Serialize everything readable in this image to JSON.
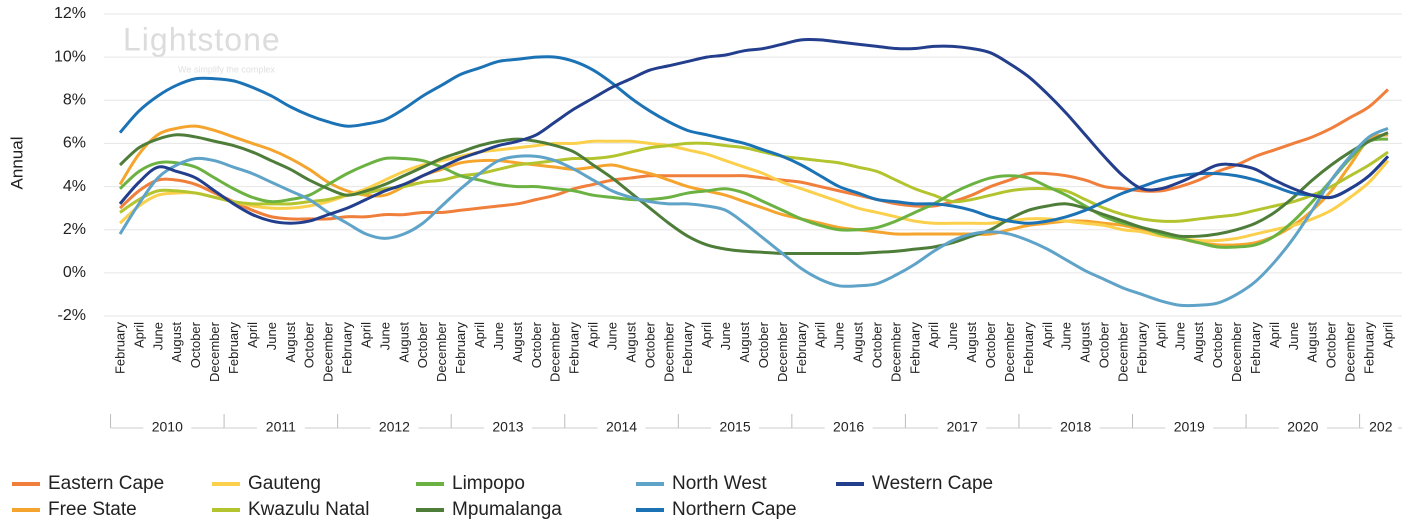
{
  "chart_data": {
    "type": "line",
    "y_label": "Annual",
    "watermark": "Lightstone",
    "watermark_tagline": "We simplify the complex",
    "smooth": true,
    "grid": true,
    "legend": "bottom",
    "categories": [
      "February",
      "April",
      "June",
      "August",
      "October",
      "December",
      "February",
      "April",
      "June",
      "August",
      "October",
      "December",
      "February",
      "April",
      "June",
      "August",
      "October",
      "December",
      "February",
      "April",
      "June",
      "August",
      "October",
      "December",
      "February",
      "April",
      "June",
      "August",
      "October",
      "December",
      "February",
      "April",
      "June",
      "August",
      "October",
      "December",
      "February",
      "April",
      "June",
      "August",
      "October",
      "December",
      "February",
      "April",
      "June",
      "August",
      "October",
      "December",
      "February",
      "April",
      "June",
      "August",
      "October",
      "December",
      "February",
      "April",
      "June",
      "August",
      "October",
      "December",
      "February",
      "April",
      "June",
      "August",
      "October",
      "December",
      "February",
      "April"
    ],
    "year_labels": [
      "2010",
      "2011",
      "2012",
      "2013",
      "2014",
      "2015",
      "2016",
      "2017",
      "2018",
      "2019",
      "2020",
      "202"
    ],
    "ylim": [
      -2,
      12
    ],
    "yticks": [
      {
        "value": 12,
        "label": "12%"
      },
      {
        "value": 10,
        "label": "10%"
      },
      {
        "value": 8,
        "label": "8%"
      },
      {
        "value": 6,
        "label": "6%"
      },
      {
        "value": 4,
        "label": "4%"
      },
      {
        "value": 2,
        "label": "2%"
      },
      {
        "value": 0,
        "label": "0%"
      },
      {
        "value": -2,
        "label": "-2%"
      }
    ],
    "series": [
      {
        "name": "Eastern Cape",
        "color": "#f07f3c",
        "values": [
          3.0,
          3.8,
          4.3,
          4.3,
          4.1,
          3.7,
          3.3,
          2.9,
          2.6,
          2.5,
          2.5,
          2.5,
          2.6,
          2.6,
          2.7,
          2.7,
          2.8,
          2.8,
          2.9,
          3.0,
          3.1,
          3.2,
          3.4,
          3.6,
          3.9,
          4.1,
          4.3,
          4.4,
          4.5,
          4.5,
          4.5,
          4.5,
          4.5,
          4.5,
          4.4,
          4.3,
          4.2,
          4.0,
          3.8,
          3.6,
          3.4,
          3.2,
          3.1,
          3.1,
          3.3,
          3.6,
          4.0,
          4.3,
          4.6,
          4.6,
          4.5,
          4.3,
          4.0,
          3.9,
          3.8,
          3.8,
          4.0,
          4.3,
          4.7,
          5.0,
          5.4,
          5.7,
          6.0,
          6.3,
          6.7,
          7.2,
          7.7,
          8.5
        ]
      },
      {
        "name": "Free State",
        "color": "#f5a52e",
        "values": [
          4.1,
          5.5,
          6.4,
          6.7,
          6.8,
          6.6,
          6.3,
          6.0,
          5.7,
          5.3,
          4.8,
          4.2,
          3.8,
          3.6,
          3.6,
          4.0,
          4.5,
          4.8,
          5.1,
          5.2,
          5.2,
          5.1,
          5.0,
          4.9,
          4.8,
          4.9,
          5.0,
          4.8,
          4.6,
          4.3,
          4.0,
          3.8,
          3.6,
          3.3,
          3.0,
          2.7,
          2.5,
          2.3,
          2.1,
          2.0,
          1.9,
          1.8,
          1.8,
          1.8,
          1.8,
          1.8,
          1.8,
          2.0,
          2.2,
          2.3,
          2.4,
          2.4,
          2.3,
          2.2,
          2.0,
          1.8,
          1.6,
          1.4,
          1.3,
          1.3,
          1.4,
          1.7,
          2.2,
          2.9,
          3.8,
          5.0,
          6.2,
          6.4
        ]
      },
      {
        "name": "Gauteng",
        "color": "#fbd04c",
        "values": [
          2.3,
          3.1,
          3.6,
          3.7,
          3.7,
          3.5,
          3.3,
          3.1,
          3.0,
          3.0,
          3.1,
          3.3,
          3.6,
          3.9,
          4.3,
          4.7,
          5.0,
          5.2,
          5.4,
          5.6,
          5.7,
          5.8,
          5.9,
          6.0,
          6.0,
          6.1,
          6.1,
          6.1,
          6.0,
          5.9,
          5.7,
          5.5,
          5.2,
          4.9,
          4.6,
          4.2,
          3.9,
          3.6,
          3.3,
          3.0,
          2.8,
          2.6,
          2.4,
          2.3,
          2.3,
          2.3,
          2.3,
          2.4,
          2.5,
          2.5,
          2.4,
          2.3,
          2.2,
          2.0,
          1.9,
          1.7,
          1.6,
          1.5,
          1.5,
          1.6,
          1.8,
          2.0,
          2.2,
          2.5,
          2.9,
          3.5,
          4.2,
          5.2
        ]
      },
      {
        "name": "Kwazulu Natal",
        "color": "#b3c42f",
        "values": [
          2.8,
          3.4,
          3.8,
          3.8,
          3.7,
          3.5,
          3.3,
          3.2,
          3.2,
          3.2,
          3.3,
          3.4,
          3.6,
          3.7,
          3.9,
          4.0,
          4.2,
          4.3,
          4.5,
          4.6,
          4.8,
          5.0,
          5.1,
          5.2,
          5.3,
          5.3,
          5.4,
          5.6,
          5.8,
          5.9,
          6.0,
          6.0,
          5.9,
          5.8,
          5.6,
          5.4,
          5.3,
          5.2,
          5.1,
          4.9,
          4.7,
          4.3,
          3.9,
          3.6,
          3.3,
          3.4,
          3.6,
          3.8,
          3.9,
          3.9,
          3.8,
          3.4,
          3.0,
          2.7,
          2.5,
          2.4,
          2.4,
          2.5,
          2.6,
          2.7,
          2.9,
          3.1,
          3.3,
          3.6,
          4.0,
          4.5,
          5.0,
          5.6
        ]
      },
      {
        "name": "Limpopo",
        "color": "#6cb242",
        "values": [
          3.9,
          4.7,
          5.1,
          5.1,
          4.9,
          4.4,
          3.9,
          3.5,
          3.3,
          3.4,
          3.6,
          4.1,
          4.6,
          5.0,
          5.3,
          5.3,
          5.2,
          4.9,
          4.5,
          4.3,
          4.1,
          4.0,
          4.0,
          3.9,
          3.8,
          3.6,
          3.5,
          3.4,
          3.4,
          3.5,
          3.7,
          3.8,
          3.9,
          3.7,
          3.3,
          2.9,
          2.5,
          2.2,
          2.0,
          2.0,
          2.1,
          2.4,
          2.8,
          3.2,
          3.7,
          4.1,
          4.4,
          4.5,
          4.4,
          4.0,
          3.6,
          3.1,
          2.6,
          2.3,
          2.1,
          1.8,
          1.6,
          1.4,
          1.2,
          1.2,
          1.3,
          1.7,
          2.4,
          3.3,
          4.3,
          5.3,
          6.1,
          6.2
        ]
      },
      {
        "name": "Mpumalanga",
        "color": "#4e7d3a",
        "values": [
          5.0,
          5.8,
          6.2,
          6.4,
          6.3,
          6.1,
          5.9,
          5.6,
          5.2,
          4.8,
          4.3,
          3.9,
          3.6,
          3.8,
          4.1,
          4.5,
          4.9,
          5.3,
          5.6,
          5.9,
          6.1,
          6.2,
          6.1,
          5.9,
          5.6,
          5.0,
          4.4,
          3.7,
          3.0,
          2.3,
          1.7,
          1.3,
          1.1,
          1.0,
          0.95,
          0.9,
          0.9,
          0.9,
          0.9,
          0.9,
          0.95,
          1.0,
          1.1,
          1.2,
          1.4,
          1.7,
          2.0,
          2.5,
          2.9,
          3.1,
          3.2,
          3.0,
          2.7,
          2.4,
          2.1,
          1.9,
          1.7,
          1.7,
          1.8,
          2.0,
          2.3,
          2.8,
          3.5,
          4.3,
          5.0,
          5.6,
          6.1,
          6.5
        ]
      },
      {
        "name": "North West",
        "color": "#5fa3c8",
        "values": [
          1.8,
          3.2,
          4.4,
          5.0,
          5.3,
          5.2,
          4.9,
          4.6,
          4.2,
          3.8,
          3.4,
          2.8,
          2.3,
          1.8,
          1.6,
          1.8,
          2.3,
          3.1,
          3.9,
          4.6,
          5.2,
          5.4,
          5.4,
          5.2,
          4.8,
          4.3,
          3.8,
          3.5,
          3.3,
          3.2,
          3.2,
          3.1,
          2.9,
          2.3,
          1.6,
          0.9,
          0.2,
          -0.3,
          -0.6,
          -0.6,
          -0.5,
          -0.1,
          0.4,
          1.0,
          1.5,
          1.8,
          1.9,
          1.8,
          1.5,
          1.1,
          0.6,
          0.1,
          -0.3,
          -0.7,
          -1.0,
          -1.3,
          -1.5,
          -1.5,
          -1.4,
          -1.0,
          -0.4,
          0.5,
          1.6,
          2.9,
          4.3,
          5.4,
          6.3,
          6.7
        ]
      },
      {
        "name": "Northern Cape",
        "color": "#1b73b6",
        "values": [
          6.5,
          7.5,
          8.2,
          8.7,
          9.0,
          9.0,
          8.9,
          8.6,
          8.2,
          7.7,
          7.3,
          7.0,
          6.8,
          6.9,
          7.1,
          7.6,
          8.2,
          8.7,
          9.2,
          9.5,
          9.8,
          9.9,
          10.0,
          10.0,
          9.8,
          9.4,
          8.8,
          8.1,
          7.5,
          7.0,
          6.6,
          6.4,
          6.2,
          6.0,
          5.7,
          5.4,
          5.0,
          4.5,
          4.0,
          3.7,
          3.4,
          3.3,
          3.2,
          3.2,
          3.1,
          2.9,
          2.6,
          2.4,
          2.3,
          2.4,
          2.6,
          2.9,
          3.3,
          3.7,
          4.0,
          4.3,
          4.5,
          4.6,
          4.6,
          4.5,
          4.3,
          4.0,
          3.7,
          3.6,
          3.5,
          3.9,
          4.5,
          5.4
        ]
      },
      {
        "name": "Western Cape",
        "color": "#233e8c",
        "values": [
          3.2,
          4.2,
          4.9,
          4.7,
          4.4,
          3.8,
          3.2,
          2.7,
          2.4,
          2.3,
          2.4,
          2.7,
          3.0,
          3.4,
          3.8,
          4.1,
          4.5,
          4.9,
          5.3,
          5.6,
          5.9,
          6.1,
          6.4,
          7.0,
          7.6,
          8.1,
          8.6,
          9.0,
          9.4,
          9.6,
          9.8,
          10.0,
          10.1,
          10.3,
          10.4,
          10.6,
          10.8,
          10.8,
          10.7,
          10.6,
          10.5,
          10.4,
          10.4,
          10.5,
          10.5,
          10.4,
          10.2,
          9.7,
          9.1,
          8.3,
          7.4,
          6.4,
          5.4,
          4.5,
          3.9,
          3.9,
          4.2,
          4.6,
          5.0,
          5.0,
          4.8,
          4.3,
          3.9,
          3.6,
          3.5,
          3.9,
          4.5,
          5.4
        ]
      }
    ]
  }
}
